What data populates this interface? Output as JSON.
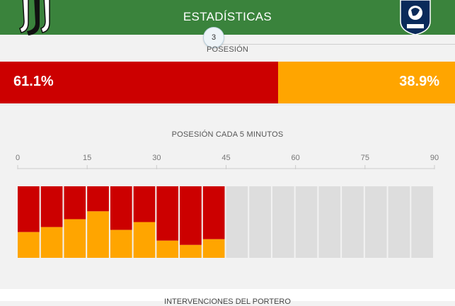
{
  "header": {
    "title": "ESTADÍSTICAS",
    "badge_number": "3",
    "color": "#3a833c"
  },
  "possession": {
    "label": "POSESIÓN",
    "home_value": "61.1%",
    "away_value": "38.9%",
    "home_fraction": 0.611,
    "home_color": "#cc0000",
    "away_color": "#ffa500"
  },
  "chart_data": {
    "type": "bar",
    "title": "POSESIÓN CADA 5 MINUTOS",
    "xlabel": "",
    "ylabel": "",
    "x_ticks": [
      "0",
      "15",
      "30",
      "45",
      "60",
      "75",
      "90"
    ],
    "xlim": [
      0,
      90
    ],
    "ylim": [
      0,
      100
    ],
    "categories": [
      "0-5",
      "5-10",
      "10-15",
      "15-20",
      "20-25",
      "25-30",
      "30-35",
      "35-40",
      "40-45",
      "45-50",
      "50-55",
      "55-60",
      "60-65",
      "65-70",
      "70-75",
      "75-80",
      "80-85",
      "85-90"
    ],
    "series": [
      {
        "color": "#cc0000",
        "values": [
          64,
          57,
          46,
          35,
          61,
          50,
          76,
          82,
          74,
          null,
          null,
          null,
          null,
          null,
          null,
          null,
          null,
          null
        ]
      },
      {
        "color": "#ffa500",
        "values": [
          36,
          43,
          54,
          65,
          39,
          50,
          24,
          18,
          26,
          null,
          null,
          null,
          null,
          null,
          null,
          null,
          null,
          null
        ]
      }
    ],
    "empty_color": "#dddddd",
    "grid": false
  },
  "next_section": {
    "label": "INTERVENCIONES DEL PORTERO"
  }
}
